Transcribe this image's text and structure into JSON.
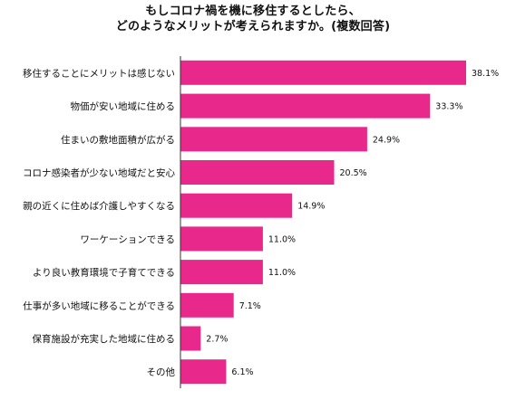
{
  "chart_data": {
    "type": "bar",
    "orientation": "horizontal",
    "title_line1": "もしコロナ禍を機に移住するとしたら、",
    "title_line2": "どのようなメリットが考えられますか。(複数回答)",
    "categories": [
      "移住することにメリットは感じない",
      "物価が安い地域に住める",
      "住まいの敷地面積が広がる",
      "コロナ感染者が少ない地域だと安心",
      "親の近くに住めば介護しやすくなる",
      "ワーケーションできる",
      "より良い教育環境で子育てできる",
      "仕事が多い地域に移ることができる",
      "保育施設が充実した地域に住める",
      "その他"
    ],
    "values": [
      38.1,
      33.3,
      24.9,
      20.5,
      14.9,
      11.0,
      11.0,
      7.1,
      2.7,
      6.1
    ],
    "value_labels": [
      "38.1%",
      "33.3%",
      "24.9%",
      "20.5%",
      "14.9%",
      "11.0%",
      "11.0%",
      "7.1%",
      "2.7%",
      "6.1%"
    ],
    "unit": "%",
    "xlim": [
      0,
      40
    ],
    "grid": false,
    "legend": "none",
    "bar_color": "#e8288a",
    "axis_color": "#333333"
  }
}
